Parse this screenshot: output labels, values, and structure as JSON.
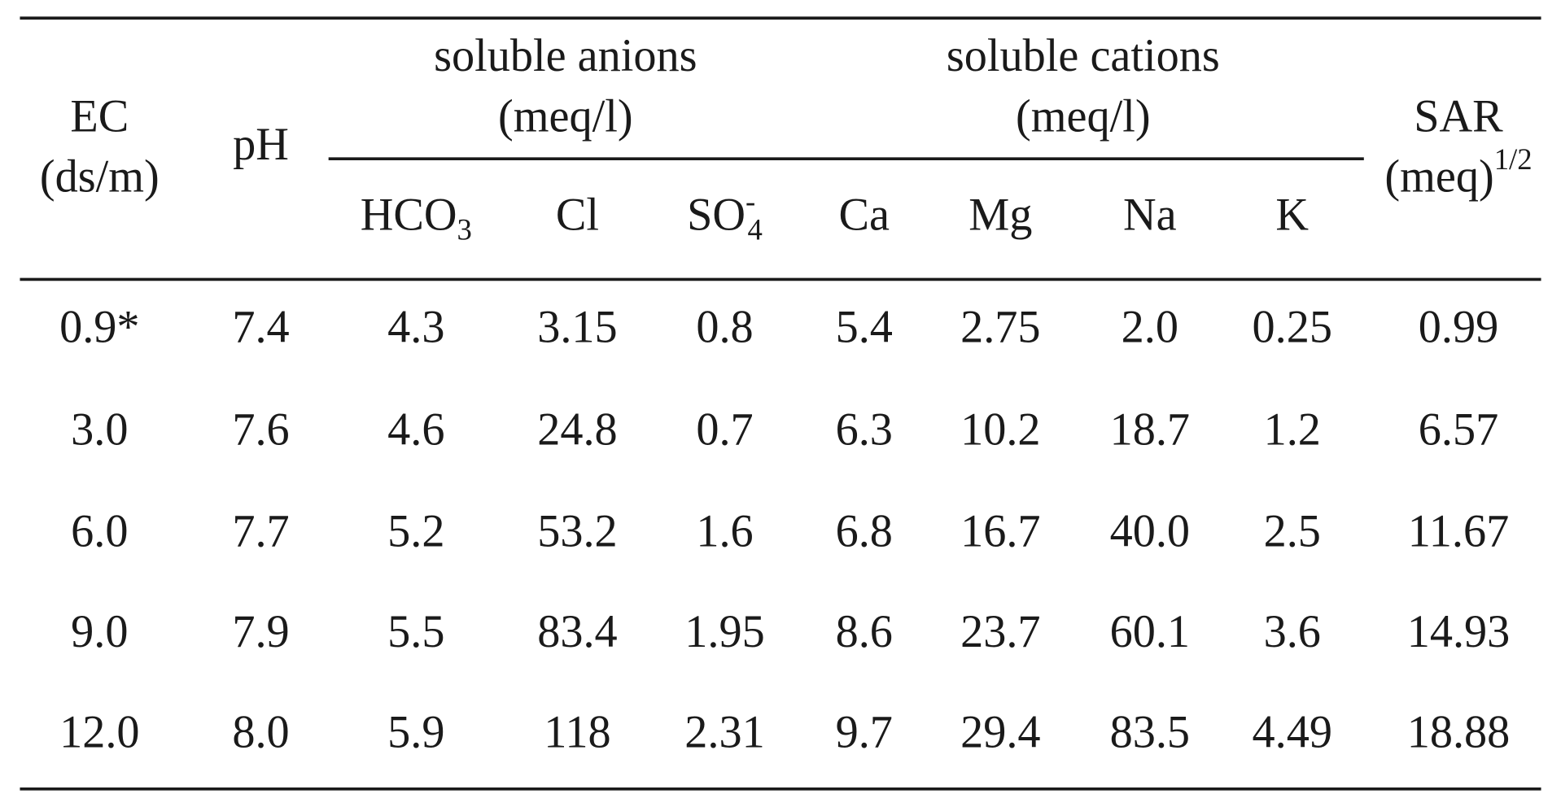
{
  "table": {
    "group_headers": [
      {
        "line1": "soluble anions",
        "line2": "(meq/l)"
      },
      {
        "line1": "soluble cations",
        "line2": "(meq/l)"
      }
    ],
    "columns": [
      {
        "line1": "EC",
        "line2": "(ds/m)"
      },
      {
        "text": "pH"
      },
      {
        "text": "HCO",
        "sub": "3"
      },
      {
        "text": "Cl"
      },
      {
        "text": "SO",
        "sup": "-",
        "sub": "4"
      },
      {
        "text": "Ca"
      },
      {
        "text": "Mg"
      },
      {
        "text": "Na"
      },
      {
        "text": "K"
      },
      {
        "line1": "SAR",
        "line2": "(meq)",
        "sup": "1/2"
      }
    ],
    "rows": [
      [
        "0.9*",
        "7.4",
        "4.3",
        "3.15",
        "0.8",
        "5.4",
        "2.75",
        "2.0",
        "0.25",
        "0.99"
      ],
      [
        "3.0",
        "7.6",
        "4.6",
        "24.8",
        "0.7",
        "6.3",
        "10.2",
        "18.7",
        "1.2",
        "6.57"
      ],
      [
        "6.0",
        "7.7",
        "5.2",
        "53.2",
        "1.6",
        "6.8",
        "16.7",
        "40.0",
        "2.5",
        "11.67"
      ],
      [
        "9.0",
        "7.9",
        "5.5",
        "83.4",
        "1.95",
        "8.6",
        "23.7",
        "60.1",
        "3.6",
        "14.93"
      ],
      [
        "12.0",
        "8.0",
        "5.9",
        "118",
        "2.31",
        "9.7",
        "29.4",
        "83.5",
        "4.49",
        "18.88"
      ]
    ]
  }
}
